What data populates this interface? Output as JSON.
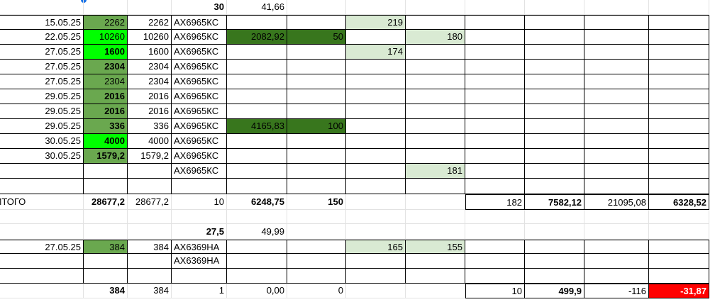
{
  "table": {
    "rows": [
      [
        null,
        null,
        null,
        "30",
        "41,66",
        null,
        null,
        null,
        null,
        null,
        null,
        null
      ],
      [
        "15.05.25",
        "2262",
        "2262",
        "АХ6965КС",
        null,
        null,
        "219",
        null,
        null,
        null,
        null,
        null
      ],
      [
        "22.05.25",
        "10260",
        "10260",
        "АХ6965КС",
        "2082,92",
        "50",
        null,
        "180",
        null,
        null,
        null,
        null
      ],
      [
        "27.05.25",
        "1600",
        "1600",
        "АХ6965КС",
        null,
        null,
        "174",
        null,
        null,
        null,
        null,
        null
      ],
      [
        "27.05.25",
        "2304",
        "2304",
        "АХ6965КС",
        null,
        null,
        null,
        null,
        null,
        null,
        null,
        null
      ],
      [
        "27.05.25",
        "2304",
        "2304",
        "АХ6965КС",
        null,
        null,
        null,
        null,
        null,
        null,
        null,
        null
      ],
      [
        "29.05.25",
        "2016",
        "2016",
        "АХ6965КС",
        null,
        null,
        null,
        null,
        null,
        null,
        null,
        null
      ],
      [
        "29.05.25",
        "2016",
        "2016",
        "АХ6965КС",
        null,
        null,
        null,
        null,
        null,
        null,
        null,
        null
      ],
      [
        "29.05.25",
        "336",
        "336",
        "АХ6965КС",
        "4165,83",
        "100",
        null,
        null,
        null,
        null,
        null,
        null
      ],
      [
        "30.05.25",
        "4000",
        "4000",
        "АХ6965КС",
        null,
        null,
        null,
        null,
        null,
        null,
        null,
        null
      ],
      [
        "30.05.25",
        "1579,2",
        "1579,2",
        "АХ6965КС",
        null,
        null,
        null,
        null,
        null,
        null,
        null,
        null
      ],
      [
        null,
        null,
        null,
        "АХ6965КС",
        null,
        null,
        null,
        "181",
        null,
        null,
        null,
        null
      ],
      [
        null,
        null,
        null,
        null,
        null,
        null,
        null,
        null,
        null,
        null,
        null,
        null
      ],
      [
        "ИТОГО",
        "28677,2",
        "28677,2",
        "10",
        "6248,75",
        "150",
        null,
        null,
        "182",
        "7582,12",
        "21095,08",
        "6328,52"
      ],
      [
        null,
        null,
        null,
        null,
        null,
        null,
        null,
        null,
        null,
        null,
        null,
        null
      ],
      [
        null,
        null,
        null,
        "27,5",
        "49,99",
        null,
        null,
        null,
        null,
        null,
        null,
        null
      ],
      [
        "27.05.25",
        "384",
        "384",
        "АХ6369НА",
        null,
        null,
        "165",
        "155",
        null,
        null,
        null,
        null
      ],
      [
        null,
        null,
        null,
        "АХ6369НА",
        null,
        null,
        null,
        null,
        null,
        null,
        null,
        null
      ],
      [
        null,
        null,
        null,
        null,
        null,
        null,
        null,
        null,
        null,
        null,
        null,
        null
      ],
      [
        null,
        "384",
        "384",
        "1",
        "0,00",
        "0",
        null,
        null,
        "10",
        "499,9",
        "-116",
        "-31,87"
      ]
    ]
  }
}
